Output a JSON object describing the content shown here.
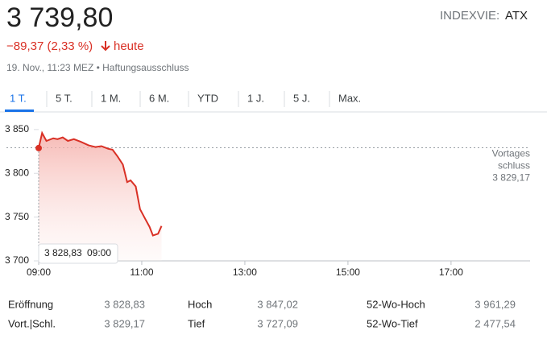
{
  "header": {
    "price": "3 739,80",
    "change": "−89,37 (2,33 %)",
    "period": "heute",
    "exchange": "INDEXVIE:",
    "ticker": "ATX",
    "timestamp": "19. Nov., 11:23 MEZ • Haftungsausschluss"
  },
  "tabs": [
    "1 T.",
    "5 T.",
    "1 M.",
    "6 M.",
    "YTD",
    "1 J.",
    "5 J.",
    "Max."
  ],
  "chart_data": {
    "type": "line",
    "x": [
      "09:00",
      "09:04",
      "09:09",
      "09:17",
      "09:22",
      "09:28",
      "09:34",
      "09:41",
      "09:49",
      "09:58",
      "10:06",
      "10:13",
      "10:21",
      "10:26",
      "10:32",
      "10:38",
      "10:43",
      "10:47",
      "10:53",
      "10:58",
      "11:04",
      "11:09",
      "11:13",
      "11:19",
      "11:23"
    ],
    "series": [
      {
        "color": "#d93025",
        "values": [
          3828.83,
          3846,
          3837,
          3840,
          3839,
          3841,
          3837,
          3839,
          3836,
          3832,
          3830,
          3831,
          3828,
          3827,
          3819,
          3810,
          3790,
          3792,
          3785,
          3759,
          3748,
          3739,
          3729,
          3731,
          3739.8
        ]
      }
    ],
    "xlim": [
      "09:00",
      "18:32"
    ],
    "xticks": [
      "09:00",
      "11:00",
      "13:00",
      "15:00",
      "17:00"
    ],
    "ylim": [
      3700,
      3860
    ],
    "yticks": [
      {
        "value": 3700,
        "label": "3 700"
      },
      {
        "value": 3750,
        "label": "3 750"
      },
      {
        "value": 3800,
        "label": "3 800"
      },
      {
        "value": 3850,
        "label": "3 850"
      }
    ],
    "previous_close": 3829.17,
    "previous_close_label": [
      "Vortages",
      "schluss"
    ],
    "previous_close_value_label": "3 829,17",
    "tooltip": {
      "value": "3 828,83",
      "time": "09:00"
    }
  },
  "stats": [
    {
      "label": "Eröffnung",
      "value": "3 828,83"
    },
    {
      "label": "Hoch",
      "value": "3 847,02"
    },
    {
      "label": "52-Wo-Hoch",
      "value": "3 961,29"
    },
    {
      "label": "Vort.|Schl.",
      "value": "3 829,17"
    },
    {
      "label": "Tief",
      "value": "3 727,09"
    },
    {
      "label": "52-Wo-Tief",
      "value": "2 477,54"
    }
  ]
}
